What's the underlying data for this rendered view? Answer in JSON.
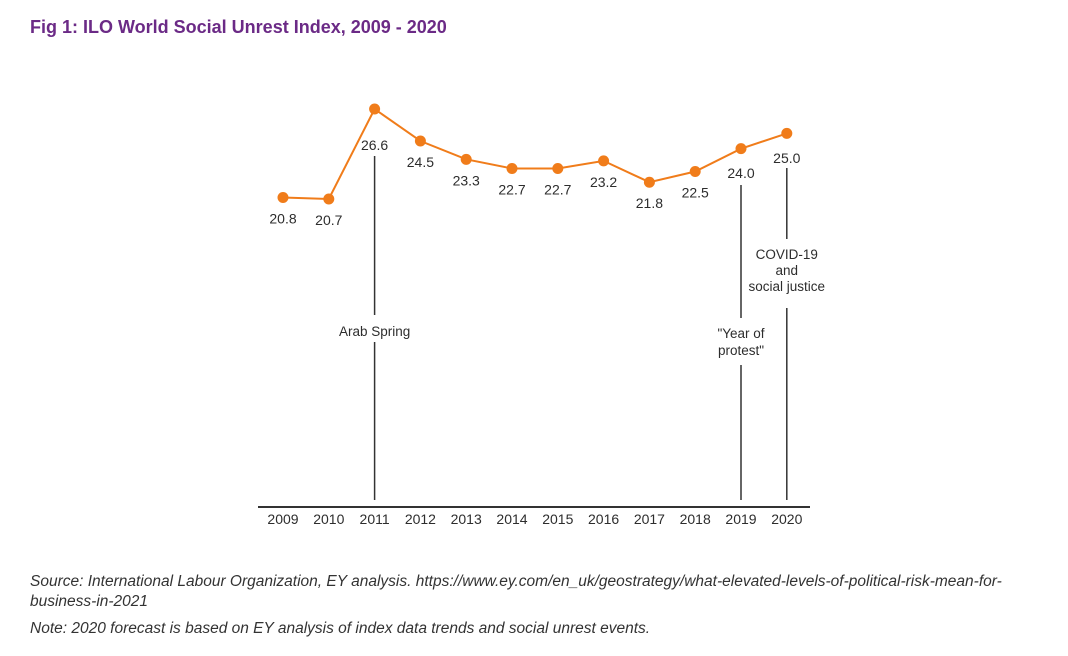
{
  "title": "Fig 1: ILO World Social Unrest Index, 2009 - 2020",
  "colors": {
    "title": "#6b2a86",
    "series": "#f07c1a",
    "axis": "#333333",
    "text": "#2d2d2d"
  },
  "chart_data": {
    "type": "line",
    "title": "Fig 1: ILO World Social Unrest Index, 2009 - 2020",
    "xlabel": "",
    "ylabel": "",
    "grid": false,
    "categories": [
      "2009",
      "2010",
      "2011",
      "2012",
      "2013",
      "2014",
      "2015",
      "2016",
      "2017",
      "2018",
      "2019",
      "2020"
    ],
    "series": [
      {
        "name": "",
        "values": [
          20.8,
          20.7,
          26.6,
          24.5,
          23.3,
          22.7,
          22.7,
          23.2,
          21.8,
          22.5,
          24.0,
          25.0
        ],
        "labels": [
          "20.8",
          "20.7",
          "26.6",
          "24.5",
          "23.3",
          "22.7",
          "22.7",
          "23.2",
          "21.8",
          "22.5",
          "24.0",
          "25.0"
        ]
      }
    ],
    "annotations": [
      {
        "year": "2011",
        "text": [
          "Arab Spring"
        ]
      },
      {
        "year": "2019",
        "text": [
          "\"Year of",
          "protest\""
        ]
      },
      {
        "year": "2020",
        "text": [
          "COVID-19",
          "and",
          "social justice"
        ]
      }
    ]
  },
  "source": "Source: International Labour Organization, EY analysis. https://www.ey.com/en_uk/geostrategy/what-elevated-levels-of-political-risk-mean-for-business-in-2021",
  "note": "Note: 2020 forecast is based on EY analysis of index data trends and social unrest events."
}
